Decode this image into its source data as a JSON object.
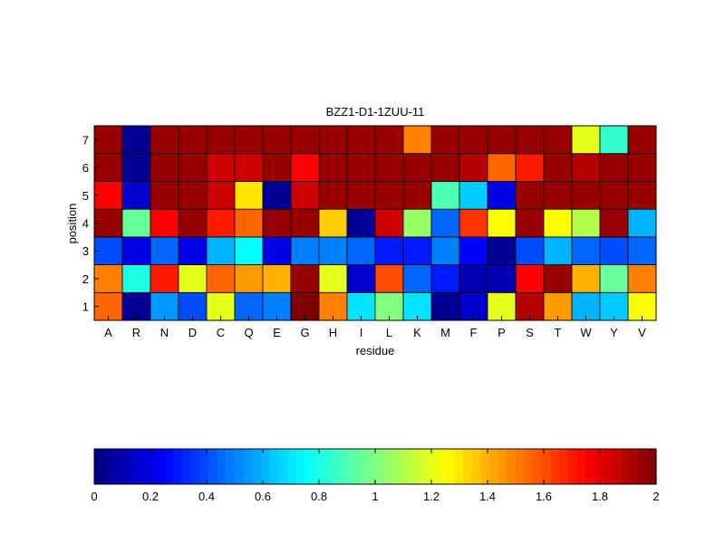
{
  "chart_data": {
    "type": "heatmap",
    "title": "BZZ1-D1-1ZUU-11",
    "xlabel": "residue",
    "ylabel": "position",
    "x_categories": [
      "A",
      "R",
      "N",
      "D",
      "C",
      "Q",
      "E",
      "G",
      "H",
      "I",
      "L",
      "K",
      "M",
      "F",
      "P",
      "S",
      "T",
      "W",
      "Y",
      "V"
    ],
    "y_categories": [
      "1",
      "2",
      "3",
      "4",
      "5",
      "6",
      "7"
    ],
    "values": [
      [
        1.55,
        0.05,
        0.55,
        0.4,
        1.2,
        0.45,
        0.5,
        2.0,
        1.5,
        0.7,
        1.0,
        0.7,
        0.05,
        0.15,
        1.2,
        1.9,
        1.45,
        0.6,
        0.65,
        1.25
      ],
      [
        1.5,
        0.8,
        1.7,
        1.2,
        1.55,
        1.45,
        1.4,
        1.95,
        1.2,
        0.15,
        1.6,
        0.45,
        0.3,
        0.1,
        0.1,
        1.75,
        1.95,
        1.4,
        0.95,
        1.5
      ],
      [
        0.4,
        0.2,
        0.45,
        0.2,
        0.6,
        0.75,
        0.2,
        0.5,
        0.5,
        0.45,
        0.3,
        0.3,
        0.5,
        0.25,
        0.05,
        0.4,
        0.6,
        0.45,
        0.4,
        0.45
      ],
      [
        1.95,
        0.95,
        1.75,
        1.95,
        1.7,
        1.55,
        1.95,
        1.95,
        1.35,
        0.05,
        1.85,
        1.05,
        0.45,
        1.65,
        1.25,
        1.95,
        1.25,
        1.1,
        1.95,
        0.6
      ],
      [
        1.75,
        0.15,
        1.95,
        1.95,
        1.85,
        1.3,
        0.05,
        1.85,
        1.95,
        1.95,
        1.95,
        1.95,
        0.9,
        0.65,
        0.2,
        1.95,
        1.95,
        1.95,
        1.95,
        1.95
      ],
      [
        1.95,
        0.05,
        1.95,
        1.95,
        1.85,
        1.85,
        1.95,
        1.75,
        1.95,
        1.95,
        1.95,
        1.95,
        1.95,
        1.9,
        1.55,
        1.7,
        1.95,
        1.9,
        1.95,
        1.95
      ],
      [
        1.95,
        0.05,
        1.95,
        1.95,
        1.95,
        1.95,
        1.95,
        1.95,
        1.95,
        1.95,
        1.95,
        1.5,
        1.95,
        1.95,
        1.95,
        1.95,
        1.95,
        1.2,
        0.85,
        1.95
      ]
    ],
    "colormap": "jet",
    "clim": [
      0,
      2
    ],
    "colorbar": {
      "orientation": "horizontal",
      "location": "bottom",
      "ticks": [
        "0",
        "0.2",
        "0.4",
        "0.6",
        "0.8",
        "1",
        "1.2",
        "1.4",
        "1.6",
        "1.8",
        "2"
      ]
    },
    "grid": true
  }
}
